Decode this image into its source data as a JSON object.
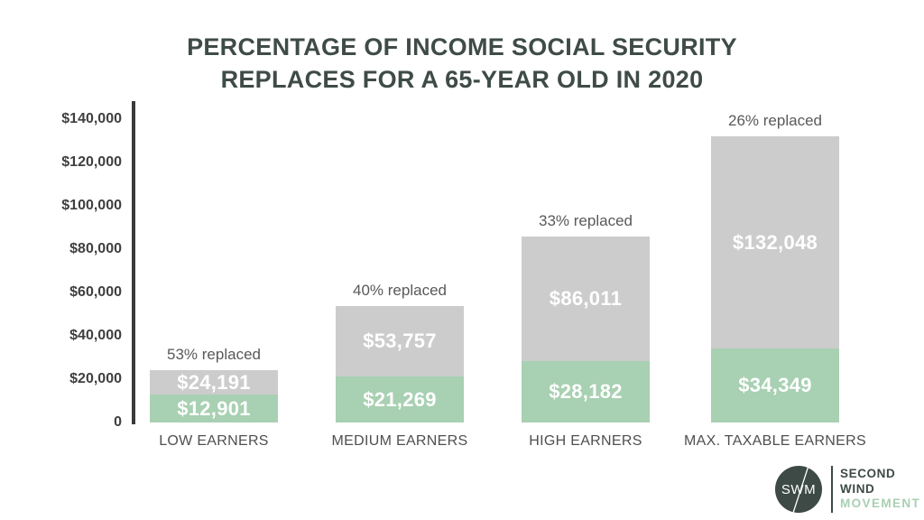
{
  "title": {
    "line1": "PERCENTAGE OF INCOME SOCIAL SECURITY",
    "line2": "REPLACES FOR A 65-YEAR OLD IN 2020"
  },
  "chart_data": {
    "type": "bar",
    "title": "PERCENTAGE OF INCOME SOCIAL SECURITY REPLACES FOR A 65-YEAR OLD IN 2020",
    "categories": [
      "LOW EARNERS",
      "MEDIUM EARNERS",
      "HIGH EARNERS",
      "MAX. TAXABLE EARNERS"
    ],
    "series": [
      {
        "name": "annual-income-total",
        "role": "full-bar-height-gray-remainder-on-top",
        "color": "#cccccc",
        "values": [
          24191,
          53757,
          86011,
          132048
        ],
        "labels": [
          "$24,191",
          "$53,757",
          "$86,011",
          "$132,048"
        ]
      },
      {
        "name": "social-security-benefit",
        "role": "green-bottom-portion-of-bar",
        "color": "#a8d0b2",
        "values": [
          12901,
          21269,
          28182,
          34349
        ],
        "labels": [
          "$12,901",
          "$21,269",
          "$28,182",
          "$34,349"
        ]
      }
    ],
    "bar_annotations": [
      "53% replaced",
      "40% replaced",
      "33% replaced",
      "26% replaced"
    ],
    "y_axis": {
      "min": 0,
      "max": 140000,
      "ticks": [
        {
          "label": "$140,000",
          "value": 140000
        },
        {
          "label": "$120,000",
          "value": 120000
        },
        {
          "label": "$100,000",
          "value": 100000
        },
        {
          "label": "$80,000",
          "value": 80000
        },
        {
          "label": "$60,000",
          "value": 60000
        },
        {
          "label": "$40,000",
          "value": 40000
        },
        {
          "label": "$20,000",
          "value": 20000
        },
        {
          "label": "0",
          "value": 0
        }
      ]
    },
    "grid": false,
    "legend": false,
    "value_label_color": "#ffffff",
    "annotation_color": "#595959"
  },
  "logo": {
    "monogram": "SWM",
    "line1": "SECOND",
    "line2": "WIND",
    "line3": "MOVEMENT",
    "circle_color": "#3d4a46",
    "accent_color": "#a8d0b2"
  },
  "colors": {
    "background": "#ffffff",
    "title": "#3f4b47",
    "axis": "#3a3a3a",
    "bar_gray": "#cccccc",
    "bar_green": "#a8d0b2",
    "category_label": "#4f4f4f"
  }
}
